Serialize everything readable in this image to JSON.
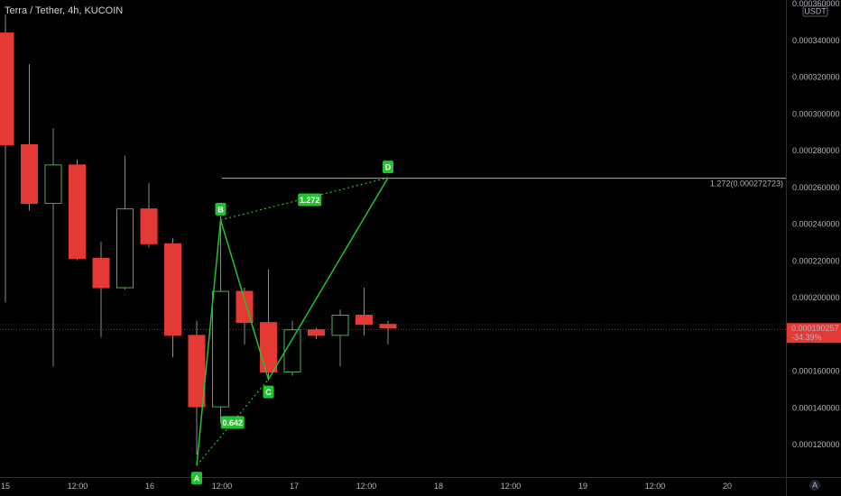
{
  "chart_data": {
    "type": "candlestick",
    "title": "Terra / Tether, 4h, KUCOIN",
    "currency": "USDT",
    "x_tick_labels": [
      "15",
      "12:00",
      "16",
      "12:00",
      "17",
      "12:00",
      "18",
      "12:00",
      "19",
      "12:00",
      "20"
    ],
    "y_tick_labels": [
      "0.000360000",
      "0.000340000",
      "0.000320000",
      "0.000300000",
      "0.000280000",
      "0.000260000",
      "0.000240000",
      "0.000220000",
      "0.000200000",
      "0.000180000",
      "0.000160000",
      "0.000140000",
      "0.000120000"
    ],
    "ylim": [
      0.00010967,
      0.00037
    ],
    "candles": [
      {
        "o": 0.000352,
        "h": 0.000362,
        "l": 0.000205,
        "c": 0.000291
      },
      {
        "o": 0.000291,
        "h": 0.000335,
        "l": 0.000255,
        "c": 0.000259
      },
      {
        "o": 0.000259,
        "h": 0.0003,
        "l": 0.00017,
        "c": 0.00028
      },
      {
        "o": 0.00028,
        "h": 0.000283,
        "l": 0.000228,
        "c": 0.000229
      },
      {
        "o": 0.000229,
        "h": 0.000238,
        "l": 0.000186,
        "c": 0.000213
      },
      {
        "o": 0.000213,
        "h": 0.000285,
        "l": 0.000212,
        "c": 0.000256
      },
      {
        "o": 0.000256,
        "h": 0.00027,
        "l": 0.000235,
        "c": 0.000237
      },
      {
        "o": 0.000237,
        "h": 0.00024,
        "l": 0.000175,
        "c": 0.000187
      },
      {
        "o": 0.000187,
        "h": 0.000195,
        "l": 0.000122,
        "c": 0.000148
      },
      {
        "o": 0.000148,
        "h": 0.000252,
        "l": 0.000139,
        "c": 0.000211
      },
      {
        "o": 0.000211,
        "h": 0.000213,
        "l": 0.000182,
        "c": 0.000194
      },
      {
        "o": 0.000194,
        "h": 0.000223,
        "l": 0.000164,
        "c": 0.000167
      },
      {
        "o": 0.000167,
        "h": 0.000195,
        "l": 0.000165,
        "c": 0.00019
      },
      {
        "o": 0.00019,
        "h": 0.000191,
        "l": 0.000185,
        "c": 0.000187
      },
      {
        "o": 0.000187,
        "h": 0.000201,
        "l": 0.00017,
        "c": 0.000198
      },
      {
        "o": 0.000198,
        "h": 0.000213,
        "l": 0.000187,
        "c": 0.000193
      },
      {
        "o": 0.000193,
        "h": 0.000195,
        "l": 0.000182,
        "c": 0.000191
      }
    ],
    "harmonic_points": [
      {
        "label": "A",
        "candle": 8,
        "price": 0.000116
      },
      {
        "label": "B",
        "candle": 9,
        "price": 0.00025
      },
      {
        "label": "C",
        "candle": 11,
        "price": 0.000163
      },
      {
        "label": "D",
        "candle": 16,
        "price": 0.000273
      }
    ],
    "ratios": [
      {
        "text": "0.642",
        "between": [
          "A",
          "C"
        ]
      },
      {
        "text": "1.272",
        "between": [
          "B",
          "D"
        ]
      }
    ],
    "fib_level": {
      "label": "1.272(0.000272723)",
      "price": 0.000272723
    },
    "current_price": {
      "value": "0.000190257",
      "change": "-34.39%",
      "price": 0.000190257
    },
    "colors": {
      "up": "#26a69a",
      "up_border": "#4caf50",
      "down": "#e53935",
      "pattern": "#22c32d",
      "fib": "#9ccc65",
      "badge": "#e53935",
      "axis_text": "#b2b5be"
    },
    "bottom_right_badge": "A"
  }
}
